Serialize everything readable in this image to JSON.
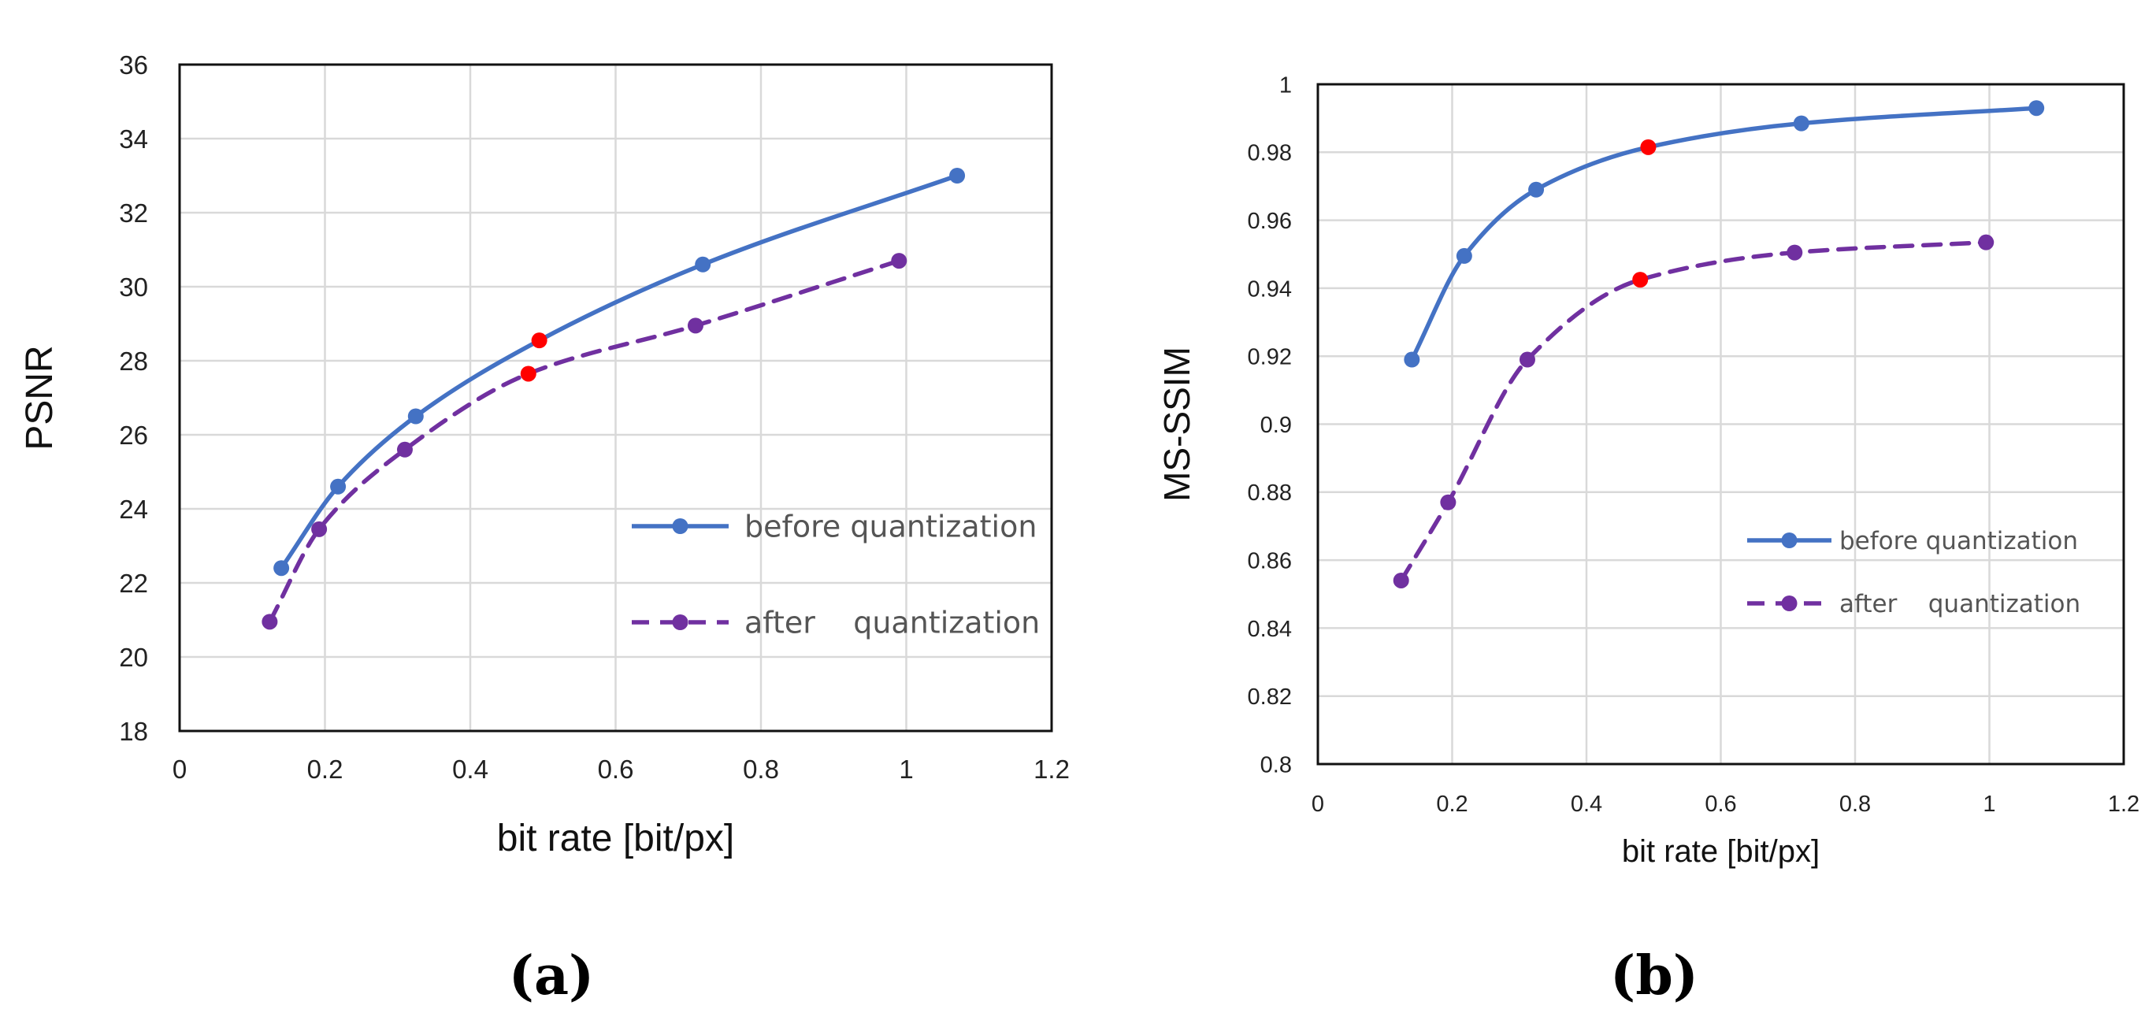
{
  "chart_data": [
    {
      "type": "line",
      "panel_label": "(a)",
      "title": "",
      "xlabel": "bit rate [bit/px]",
      "ylabel": "PSNR",
      "xlim": [
        0,
        1.2
      ],
      "ylim": [
        18,
        36
      ],
      "xticks": [
        "0",
        "0.2",
        "0.4",
        "0.6",
        "0.8",
        "1",
        "1.2"
      ],
      "yticks": [
        "18",
        "20",
        "22",
        "24",
        "26",
        "28",
        "30",
        "32",
        "34",
        "36"
      ],
      "grid": true,
      "legend_position": "right",
      "series": [
        {
          "name": "before quantization",
          "color": "#4472C4",
          "style": "solid",
          "x": [
            0.14,
            0.218,
            0.325,
            0.495,
            0.72,
            1.07
          ],
          "y": [
            22.4,
            24.6,
            26.5,
            28.55,
            30.6,
            33.0
          ],
          "highlight_index": 3
        },
        {
          "name": "after    quantization",
          "color": "#7030A0",
          "style": "dashed",
          "x": [
            0.124,
            0.192,
            0.31,
            0.48,
            0.71,
            0.99
          ],
          "y": [
            20.95,
            23.45,
            25.6,
            27.65,
            28.95,
            30.7
          ],
          "highlight_index": 3
        }
      ],
      "highlight_color": "#FF0000"
    },
    {
      "type": "line",
      "panel_label": "(b)",
      "title": "",
      "xlabel": "bit rate [bit/px]",
      "ylabel": "MS-SSIM",
      "xlim": [
        0,
        1.2
      ],
      "ylim": [
        0.8,
        1.0
      ],
      "xticks": [
        "0",
        "0.2",
        "0.4",
        "0.6",
        "0.8",
        "1",
        "1.2"
      ],
      "yticks": [
        "0.8",
        "0.82",
        "0.84",
        "0.86",
        "0.88",
        "0.9",
        "0.92",
        "0.94",
        "0.96",
        "0.98",
        "1"
      ],
      "grid": true,
      "legend_position": "right",
      "series": [
        {
          "name": "before quantization",
          "color": "#4472C4",
          "style": "solid",
          "x": [
            0.14,
            0.218,
            0.325,
            0.492,
            0.72,
            1.07
          ],
          "y": [
            0.919,
            0.9495,
            0.969,
            0.9815,
            0.9885,
            0.993
          ],
          "highlight_index": 3
        },
        {
          "name": "after    quantization",
          "color": "#7030A0",
          "style": "dashed",
          "x": [
            0.124,
            0.194,
            0.312,
            0.48,
            0.71,
            0.995
          ],
          "y": [
            0.854,
            0.877,
            0.919,
            0.9425,
            0.9505,
            0.9535
          ],
          "highlight_index": 3
        }
      ],
      "highlight_color": "#FF0000"
    }
  ]
}
